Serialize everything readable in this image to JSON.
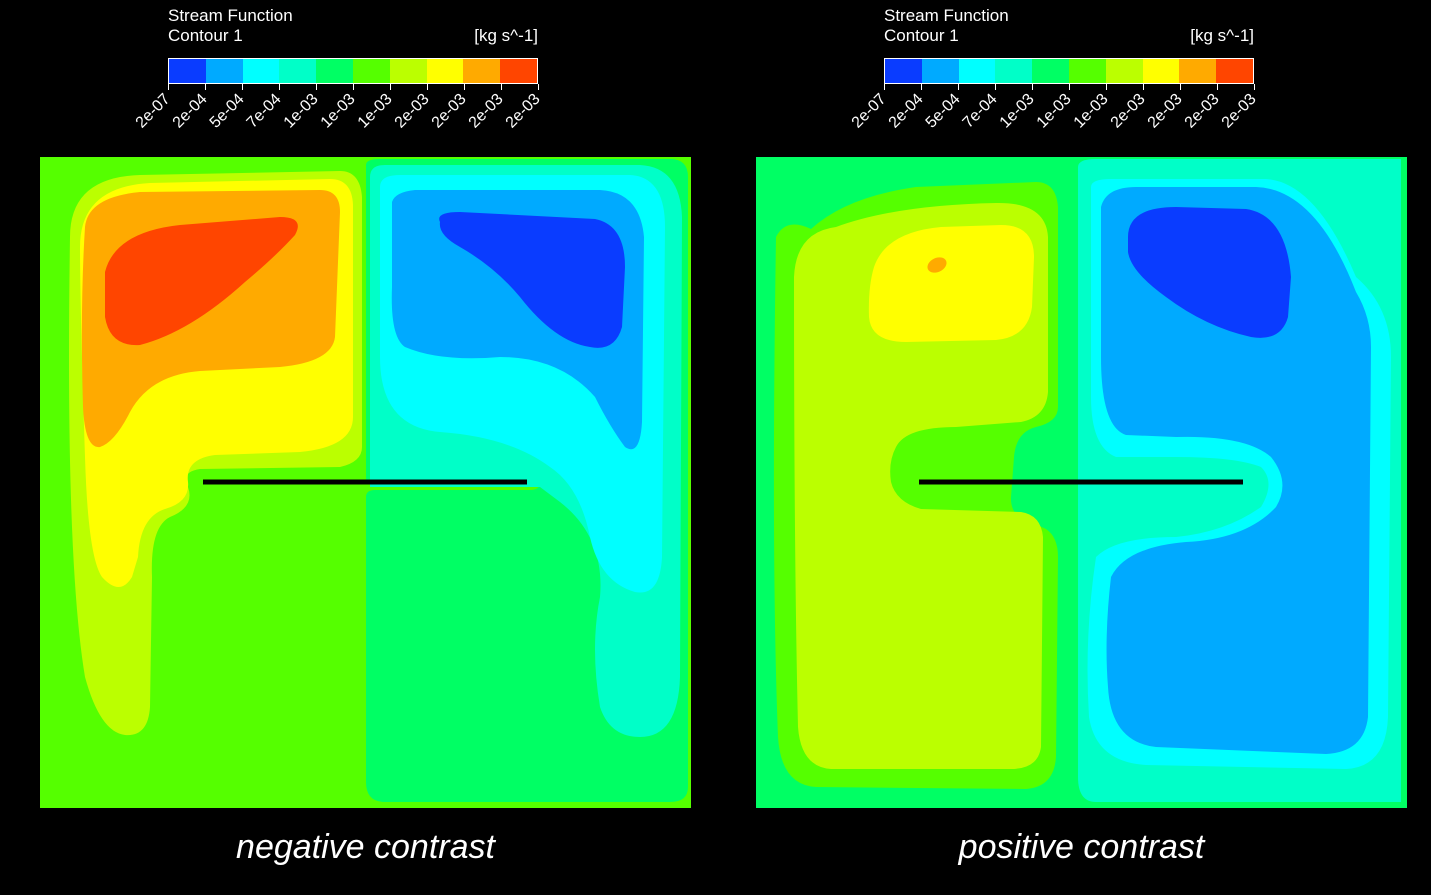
{
  "chart_data": [
    {
      "type": "heatmap",
      "title": "Stream Function",
      "subtitle": "Contour 1",
      "unit": "[kg s^-1]",
      "legend_ticks": [
        "2e-07",
        "2e-04",
        "5e-04",
        "7e-04",
        "1e-03",
        "1e-03",
        "1e-03",
        "2e-03",
        "2e-03",
        "2e-03",
        "2e-03"
      ],
      "legend_colors": [
        "#0a3cff",
        "#00aaff",
        "#00ffff",
        "#00ffc8",
        "#00ff64",
        "#55ff00",
        "#bbff00",
        "#ffff00",
        "#ffaa00",
        "#ff4500"
      ],
      "caption": "negative contrast"
    },
    {
      "type": "heatmap",
      "title": "Stream Function",
      "subtitle": "Contour 1",
      "unit": "[kg s^-1]",
      "legend_ticks": [
        "2e-07",
        "2e-04",
        "5e-04",
        "7e-04",
        "1e-03",
        "1e-03",
        "1e-03",
        "2e-03",
        "2e-03",
        "2e-03",
        "2e-03"
      ],
      "legend_colors": [
        "#0a3cff",
        "#00aaff",
        "#00ffff",
        "#00ffc8",
        "#00ff64",
        "#55ff00",
        "#bbff00",
        "#ffff00",
        "#ffaa00",
        "#ff4500"
      ],
      "caption": "positive contrast"
    }
  ]
}
